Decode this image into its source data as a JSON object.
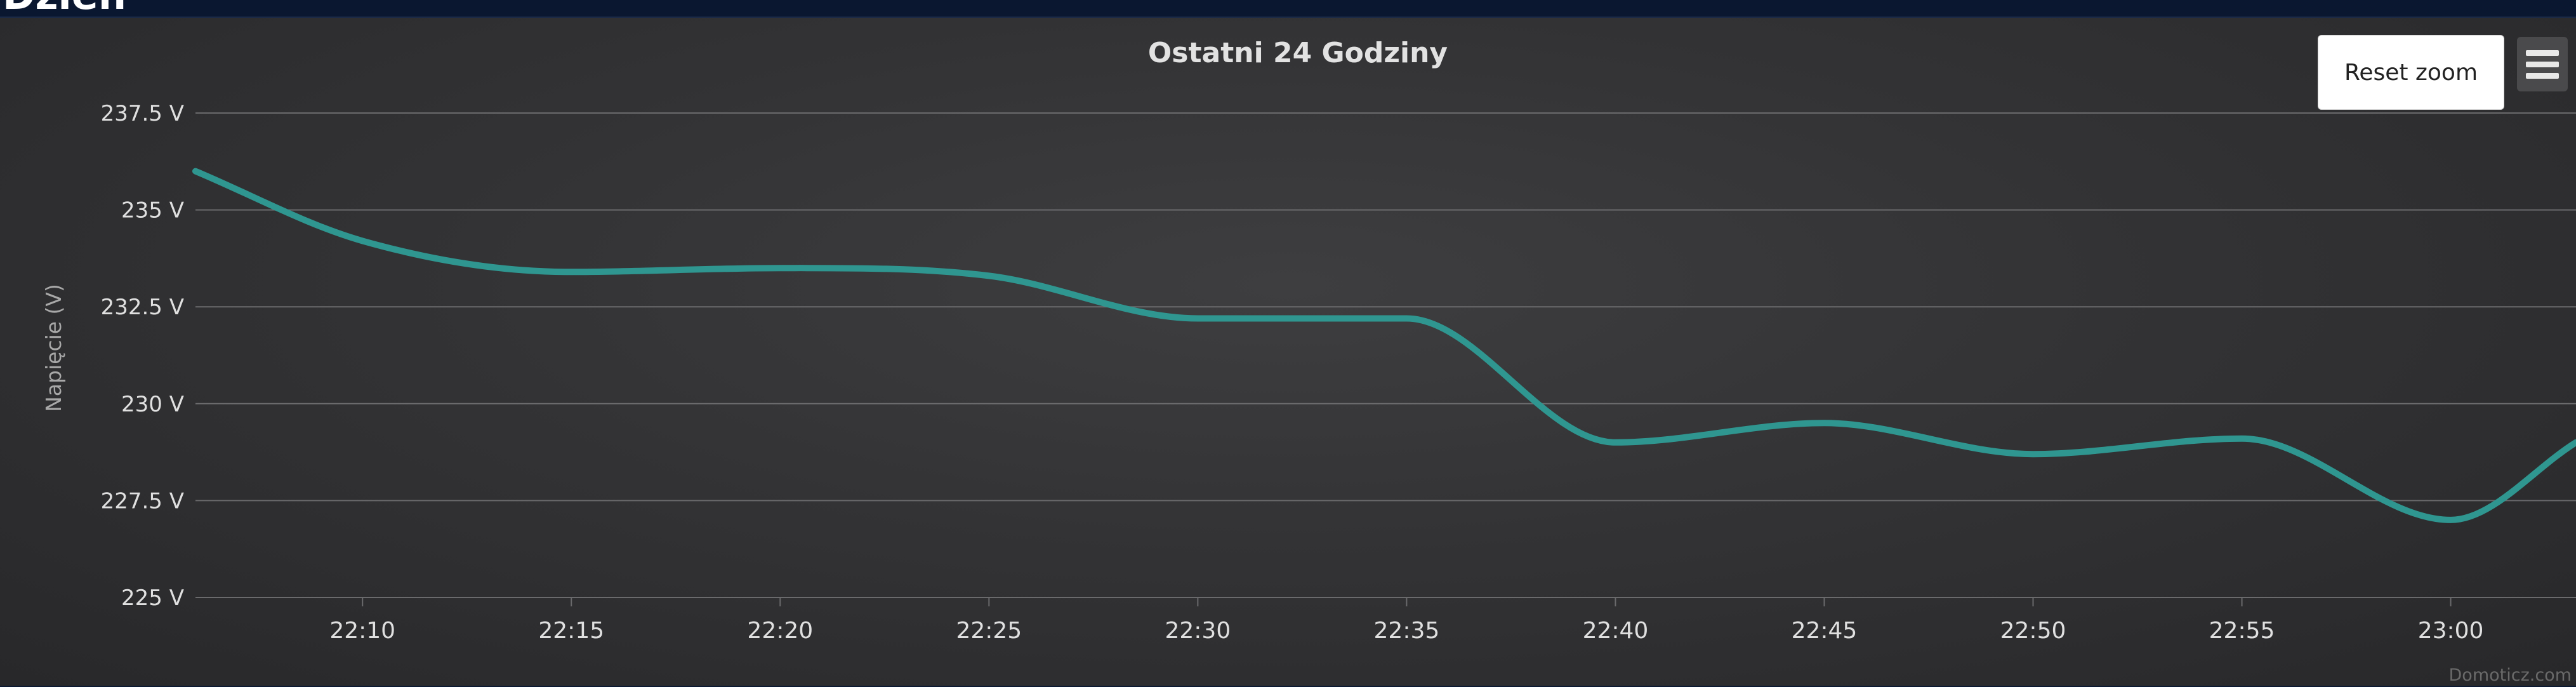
{
  "page": {
    "header_label": "Dzień"
  },
  "toolbar": {
    "reset_zoom_label": "Reset zoom",
    "menu_icon": "hamburger-menu-icon"
  },
  "credits": "Domoticz.com",
  "colors": {
    "series_line": "#2f9690",
    "gridline": "#6a6a6c",
    "background": "#333335"
  },
  "chart_data": {
    "type": "line",
    "title": "Ostatni 24 Godziny",
    "xlabel": "",
    "ylabel": "Napięcie (V)",
    "y_unit": "V",
    "ylim": [
      225,
      237.5
    ],
    "yticks": [
      225,
      227.5,
      230,
      232.5,
      235,
      237.5
    ],
    "ytick_labels": [
      "225 V",
      "227.5 V",
      "230 V",
      "232.5 V",
      "235 V",
      "237.5 V"
    ],
    "xlim": [
      "22:06",
      "23:03"
    ],
    "xticks": [
      "22:10",
      "22:15",
      "22:20",
      "22:25",
      "22:30",
      "22:35",
      "22:40",
      "22:45",
      "22:50",
      "22:55",
      "23:00"
    ],
    "grid": true,
    "legend": "none",
    "series": [
      {
        "x": [
          "22:06",
          "22:10",
          "22:15",
          "22:20",
          "22:25",
          "22:30",
          "22:35",
          "22:40",
          "22:45",
          "22:50",
          "22:55",
          "23:00",
          "23:03"
        ],
        "values": [
          236,
          234.2,
          233.4,
          233.5,
          233.3,
          232.2,
          232.2,
          229,
          229.5,
          228.7,
          229.1,
          227,
          229
        ]
      }
    ]
  }
}
